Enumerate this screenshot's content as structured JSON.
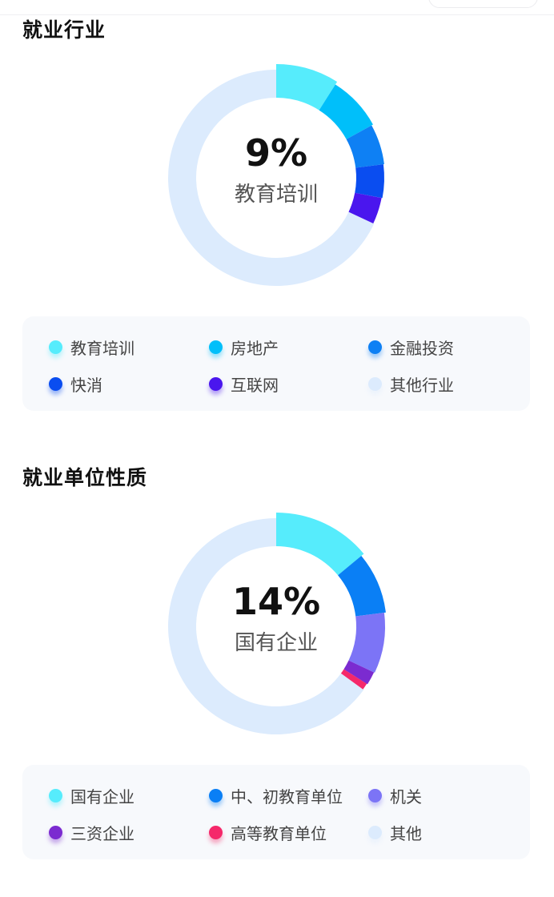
{
  "chart_data": [
    {
      "type": "pie",
      "title": "就业行业",
      "center_value": "9%",
      "center_label": "教育培训",
      "categories": [
        "教育培训",
        "房地产",
        "金融投资",
        "快消",
        "互联网",
        "其他行业"
      ],
      "values": [
        9,
        8,
        6,
        5,
        4,
        68
      ],
      "colors": [
        "#56ECFC",
        "#00BFFA",
        "#0E80F4",
        "#0A4DF0",
        "#4A16EE",
        "#DCEBFD"
      ],
      "legend_placement": "bottom"
    },
    {
      "type": "pie",
      "title": "就业单位性质",
      "center_value": "14%",
      "center_label": "国有企业",
      "categories": [
        "国有企业",
        "中、初教育单位",
        "机关",
        "三资企业",
        "高等教育单位",
        "其他"
      ],
      "values": [
        14,
        9,
        9,
        2,
        1,
        65
      ],
      "colors": [
        "#56ECFC",
        "#0A7FF5",
        "#7C74F6",
        "#7B2BD0",
        "#F5286A",
        "#DCEBFD"
      ],
      "legend_placement": "bottom"
    }
  ]
}
